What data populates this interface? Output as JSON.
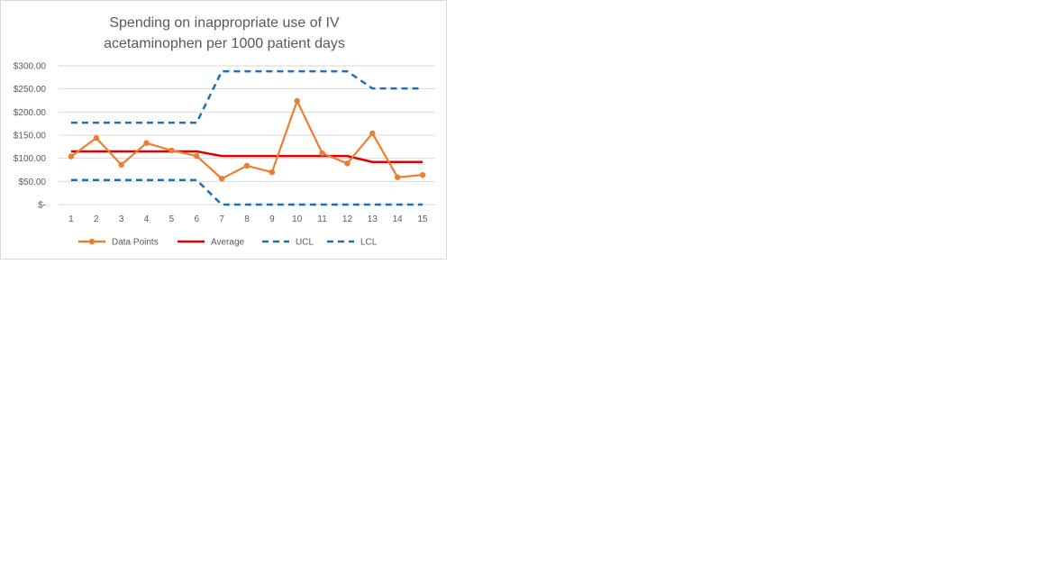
{
  "chart_data": {
    "type": "line",
    "title_lines": [
      "Spending on inappropriate use of  IV",
      "acetaminophen per 1000 patient days"
    ],
    "x": [
      1,
      2,
      3,
      4,
      5,
      6,
      7,
      8,
      9,
      10,
      11,
      12,
      13,
      14,
      15
    ],
    "ylim": [
      0,
      300
    ],
    "y_ticks": [
      0,
      50,
      100,
      150,
      200,
      250,
      300
    ],
    "y_tick_labels": [
      "$-",
      "$50.00",
      "$100.00",
      "$150.00",
      "$200.00",
      "$250.00",
      "$300.00"
    ],
    "grid": true,
    "legend_position": "bottom",
    "series": [
      {
        "name": "Data Points",
        "color": "#ED7D31",
        "style": "solid-markers",
        "values": [
          104,
          144,
          86,
          133,
          117,
          105,
          56,
          84,
          70,
          224,
          111,
          89,
          154,
          59,
          64
        ]
      },
      {
        "name": "Average",
        "color": "#E00000",
        "style": "solid",
        "values": [
          115,
          115,
          115,
          115,
          115,
          115,
          105,
          105,
          105,
          105,
          105,
          105,
          92,
          92,
          92
        ]
      },
      {
        "name": "UCL",
        "color": "#1F6FB4",
        "style": "dashed",
        "values": [
          177,
          177,
          177,
          177,
          177,
          177,
          288,
          288,
          288,
          288,
          288,
          288,
          251,
          251,
          251
        ]
      },
      {
        "name": "LCL",
        "color": "#1F6FB4",
        "style": "dashed",
        "values": [
          53,
          53,
          53,
          53,
          53,
          53,
          0,
          0,
          0,
          0,
          0,
          0,
          0,
          0,
          0
        ]
      }
    ]
  }
}
